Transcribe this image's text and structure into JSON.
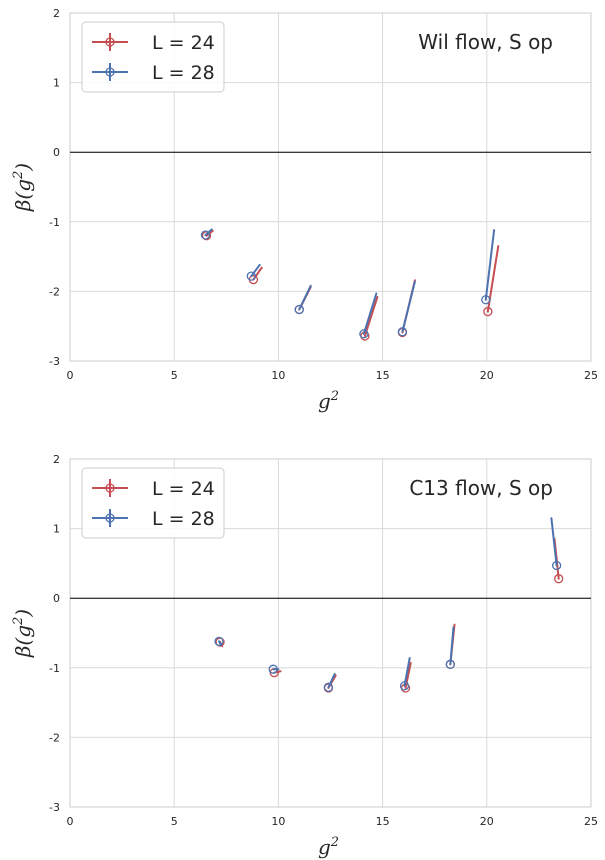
{
  "chart_data": [
    {
      "type": "line",
      "annotation": "Wil flow, S op",
      "xlabel": "g^2",
      "ylabel": "β(g^2)",
      "xlim": [
        0,
        25
      ],
      "ylim": [
        -3,
        2
      ],
      "xticks": [
        0,
        5,
        10,
        15,
        20,
        25
      ],
      "yticks": [
        -3,
        -2,
        -1,
        0,
        1,
        2
      ],
      "hline": 0,
      "grid": true,
      "legend_position": "top-left",
      "series": [
        {
          "name": "L = 24",
          "color": "#c44e52",
          "segments": [
            {
              "start": [
                6.55,
                -1.2
              ],
              "end": [
                6.85,
                -1.13
              ]
            },
            {
              "start": [
                8.8,
                -1.83
              ],
              "end": [
                9.2,
                -1.66
              ]
            },
            {
              "start": [
                11.0,
                -2.26
              ],
              "end": [
                11.55,
                -1.94
              ]
            },
            {
              "start": [
                14.15,
                -2.64
              ],
              "end": [
                14.75,
                -2.08
              ]
            },
            {
              "start": [
                15.95,
                -2.59
              ],
              "end": [
                16.55,
                -1.84
              ]
            },
            {
              "start": [
                20.05,
                -2.29
              ],
              "end": [
                20.55,
                -1.35
              ]
            }
          ]
        },
        {
          "name": "L = 28",
          "color": "#4c72b0",
          "segments": [
            {
              "start": [
                6.5,
                -1.19
              ],
              "end": [
                6.8,
                -1.11
              ]
            },
            {
              "start": [
                8.7,
                -1.78
              ],
              "end": [
                9.1,
                -1.62
              ]
            },
            {
              "start": [
                11.0,
                -2.26
              ],
              "end": [
                11.55,
                -1.92
              ]
            },
            {
              "start": [
                14.1,
                -2.61
              ],
              "end": [
                14.7,
                -2.03
              ]
            },
            {
              "start": [
                15.95,
                -2.58
              ],
              "end": [
                16.55,
                -1.86
              ]
            },
            {
              "start": [
                19.95,
                -2.12
              ],
              "end": [
                20.35,
                -1.12
              ]
            }
          ]
        }
      ]
    },
    {
      "type": "line",
      "annotation": "C13 flow, S op",
      "xlabel": "g^2",
      "ylabel": "β(g^2)",
      "xlim": [
        0,
        25
      ],
      "ylim": [
        -3,
        2
      ],
      "xticks": [
        0,
        5,
        10,
        15,
        20,
        25
      ],
      "yticks": [
        -3,
        -2,
        -1,
        0,
        1,
        2
      ],
      "hline": 0,
      "grid": true,
      "legend_position": "top-left",
      "series": [
        {
          "name": "L = 24",
          "color": "#c44e52",
          "segments": [
            {
              "start": [
                7.2,
                -0.63
              ],
              "end": [
                7.3,
                -0.69
              ]
            },
            {
              "start": [
                9.8,
                -1.07
              ],
              "end": [
                10.1,
                -1.05
              ]
            },
            {
              "start": [
                12.4,
                -1.29
              ],
              "end": [
                12.75,
                -1.11
              ]
            },
            {
              "start": [
                16.1,
                -1.29
              ],
              "end": [
                16.35,
                -0.93
              ]
            },
            {
              "start": [
                18.25,
                -0.95
              ],
              "end": [
                18.45,
                -0.38
              ]
            },
            {
              "start": [
                23.45,
                0.28
              ],
              "end": [
                23.25,
                0.85
              ]
            }
          ]
        },
        {
          "name": "L = 28",
          "color": "#4c72b0",
          "segments": [
            {
              "start": [
                7.15,
                -0.62
              ],
              "end": [
                7.25,
                -0.67
              ]
            },
            {
              "start": [
                9.75,
                -1.02
              ],
              "end": [
                10.0,
                -1.02
              ]
            },
            {
              "start": [
                12.4,
                -1.28
              ],
              "end": [
                12.7,
                -1.09
              ]
            },
            {
              "start": [
                16.05,
                -1.26
              ],
              "end": [
                16.3,
                -0.86
              ]
            },
            {
              "start": [
                18.25,
                -0.95
              ],
              "end": [
                18.4,
                -0.42
              ]
            },
            {
              "start": [
                23.35,
                0.47
              ],
              "end": [
                23.1,
                1.15
              ]
            }
          ]
        }
      ]
    }
  ]
}
